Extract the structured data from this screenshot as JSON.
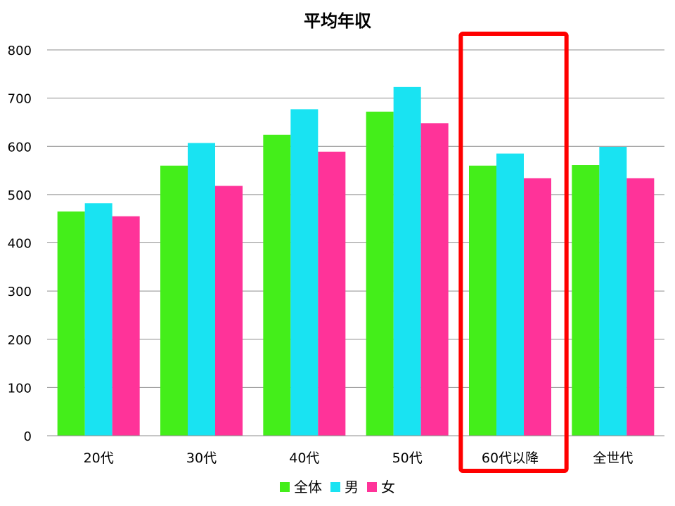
{
  "chart_data": {
    "type": "bar",
    "title": "平均年収",
    "xlabel": "",
    "ylabel": "",
    "ylim": [
      0,
      800
    ],
    "yticks": [
      0,
      100,
      200,
      300,
      400,
      500,
      600,
      700,
      800
    ],
    "grid": true,
    "legend_position": "bottom",
    "categories": [
      "20代",
      "30代",
      "40代",
      "50代",
      "60代以降",
      "全世代"
    ],
    "series": [
      {
        "name": "全体",
        "color": "#44ee1a",
        "values": [
          465,
          560,
          624,
          672,
          560,
          561
        ]
      },
      {
        "name": "男",
        "color": "#19e3f2",
        "values": [
          482,
          607,
          677,
          723,
          585,
          599
        ]
      },
      {
        "name": "女",
        "color": "#ff3399",
        "values": [
          455,
          518,
          589,
          648,
          534,
          534
        ]
      }
    ],
    "highlight": {
      "category": "60代以降",
      "color": "#ff0000"
    }
  }
}
